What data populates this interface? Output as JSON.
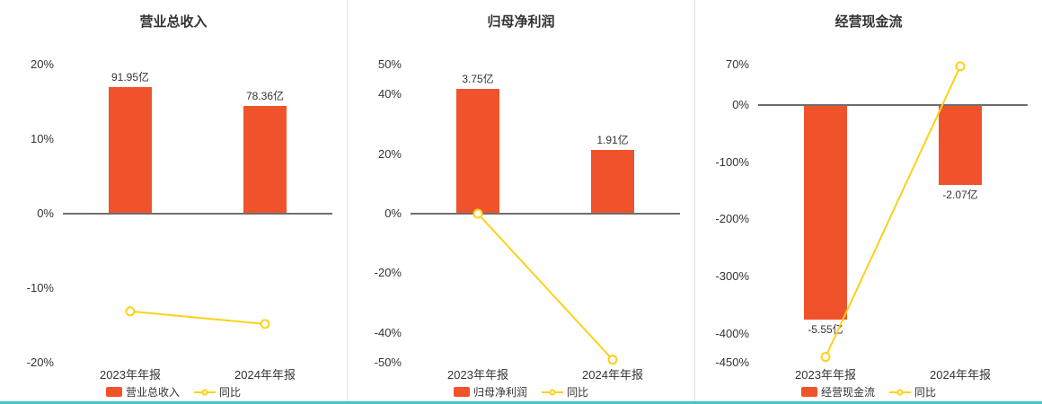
{
  "colors": {
    "bar": "#f0532b",
    "line": "#fdd118",
    "marker_fill": "#ffffff",
    "zero_line": "#6e6e6e",
    "accent_bottom": "#3fc6c8",
    "text": "#333333"
  },
  "chart_data": [
    {
      "type": "bar",
      "title": "营业总收入",
      "categories": [
        "2023年年报",
        "2024年年报"
      ],
      "series": [
        {
          "name": "营业总收入",
          "type": "bar",
          "unit": "亿",
          "values": [
            91.95,
            78.36
          ],
          "labels": [
            "91.95亿",
            "78.36亿"
          ],
          "plot_values_pct": [
            17,
            14.49
          ]
        },
        {
          "name": "同比",
          "type": "line",
          "unit": "%",
          "values": [
            -13.1,
            -14.8
          ]
        }
      ],
      "ylim": [
        -20,
        20
      ],
      "ticks": [
        20,
        10,
        0,
        -10,
        -20
      ],
      "legend": [
        "营业总收入",
        "同比"
      ],
      "legend_position": "bottom",
      "grid": false
    },
    {
      "type": "bar",
      "title": "归母净利润",
      "categories": [
        "2023年年报",
        "2024年年报"
      ],
      "series": [
        {
          "name": "归母净利润",
          "type": "bar",
          "unit": "亿",
          "values": [
            3.75,
            1.91
          ],
          "labels": [
            "3.75亿",
            "1.91亿"
          ],
          "plot_values_pct": [
            42,
            21.4
          ]
        },
        {
          "name": "同比",
          "type": "line",
          "unit": "%",
          "values": [
            0,
            -49
          ]
        }
      ],
      "ylim": [
        -50,
        50
      ],
      "ticks": [
        50,
        40,
        20,
        0,
        -20,
        -40,
        -50
      ],
      "legend": [
        "归母净利润",
        "同比"
      ],
      "legend_position": "bottom",
      "grid": false
    },
    {
      "type": "bar",
      "title": "经营现金流",
      "categories": [
        "2023年年报",
        "2024年年报"
      ],
      "series": [
        {
          "name": "经营现金流",
          "type": "bar",
          "unit": "亿",
          "values": [
            -5.55,
            -2.07
          ],
          "labels": [
            "-5.55亿",
            "-2.07亿"
          ],
          "plot_values_pct": [
            -375,
            -139.9
          ]
        },
        {
          "name": "同比",
          "type": "line",
          "unit": "%",
          "values": [
            -440,
            67
          ]
        }
      ],
      "ylim": [
        -450,
        70
      ],
      "ticks": [
        70,
        0,
        -100,
        -200,
        -300,
        -400,
        -450
      ],
      "legend": [
        "经营现金流",
        "同比"
      ],
      "legend_position": "bottom",
      "grid": false
    }
  ]
}
